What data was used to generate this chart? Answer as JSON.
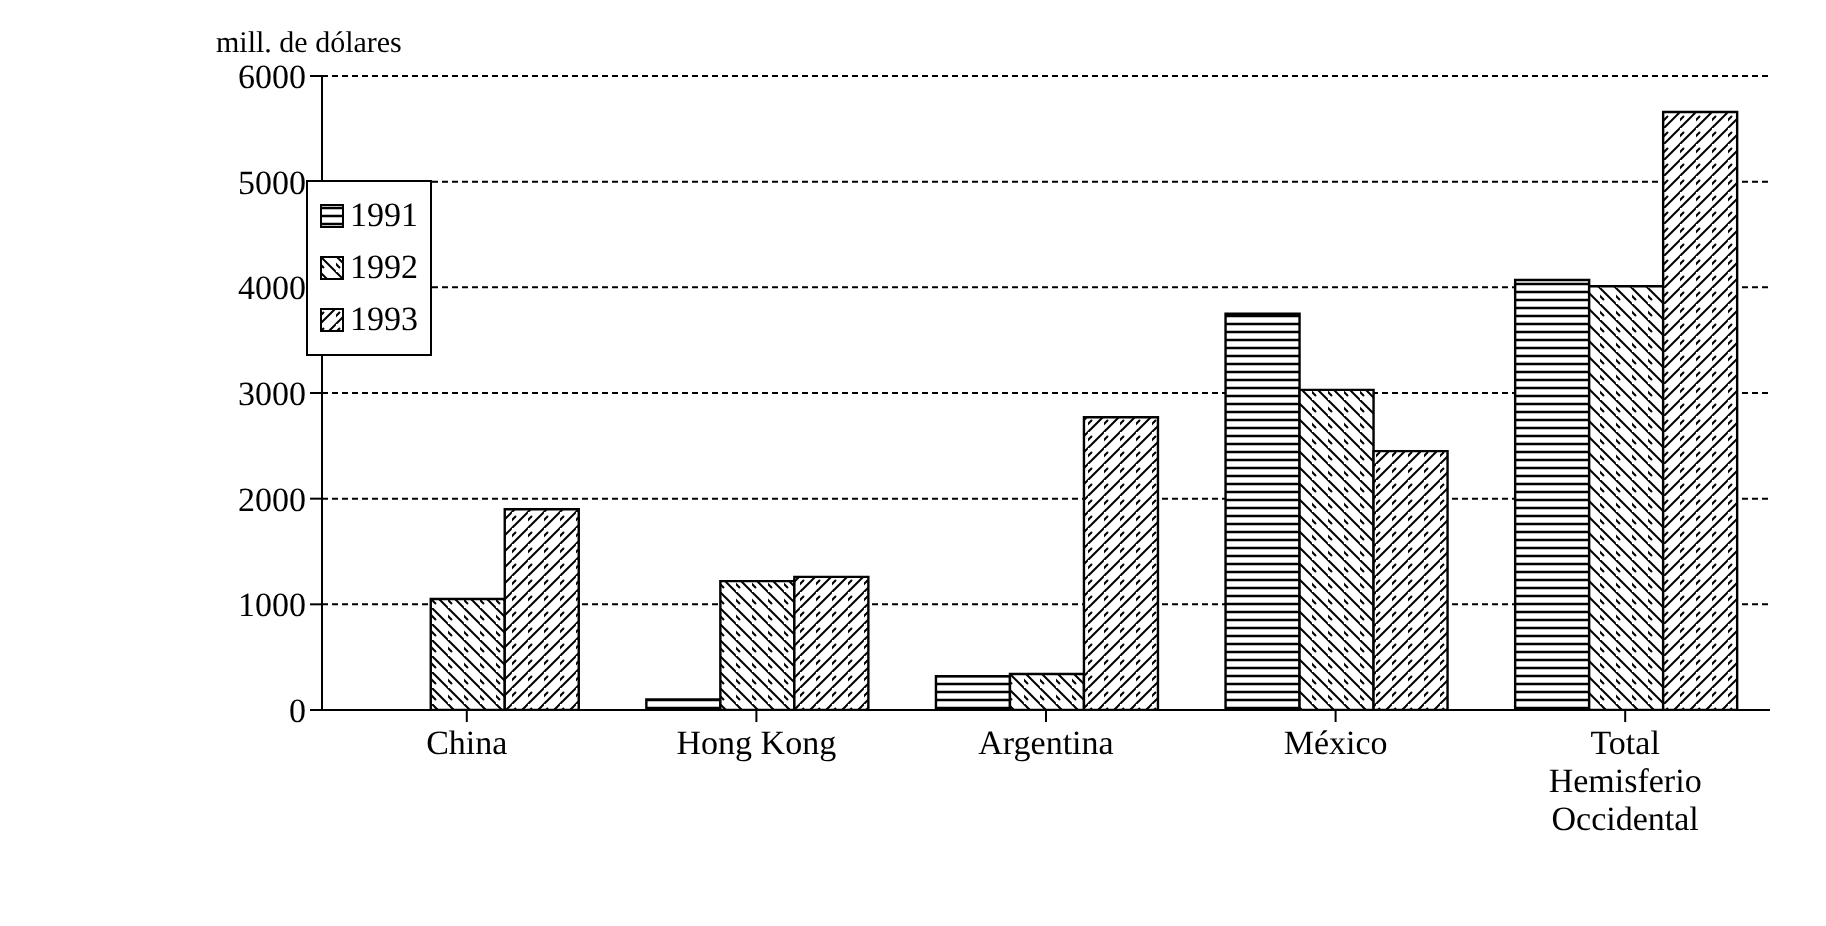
{
  "chart_data": {
    "type": "bar",
    "ylabel": "mill. de dólares",
    "categories": [
      "China",
      "Hong Kong",
      "Argentina",
      "México",
      "Total Hemisferio Occidental"
    ],
    "series": [
      {
        "name": "1991",
        "color": "#000000",
        "values": [
          null,
          100,
          320,
          3750,
          4070
        ]
      },
      {
        "name": "1992",
        "color": "#000000",
        "values": [
          1050,
          1220,
          340,
          3030,
          4010
        ]
      },
      {
        "name": "1993",
        "color": "#000000",
        "values": [
          1900,
          1260,
          2770,
          2450,
          5660
        ]
      }
    ],
    "ylim": [
      0,
      6000
    ],
    "yticks": [
      0,
      1000,
      2000,
      3000,
      4000,
      5000,
      6000
    ],
    "grid": "y",
    "legend": "top left"
  }
}
